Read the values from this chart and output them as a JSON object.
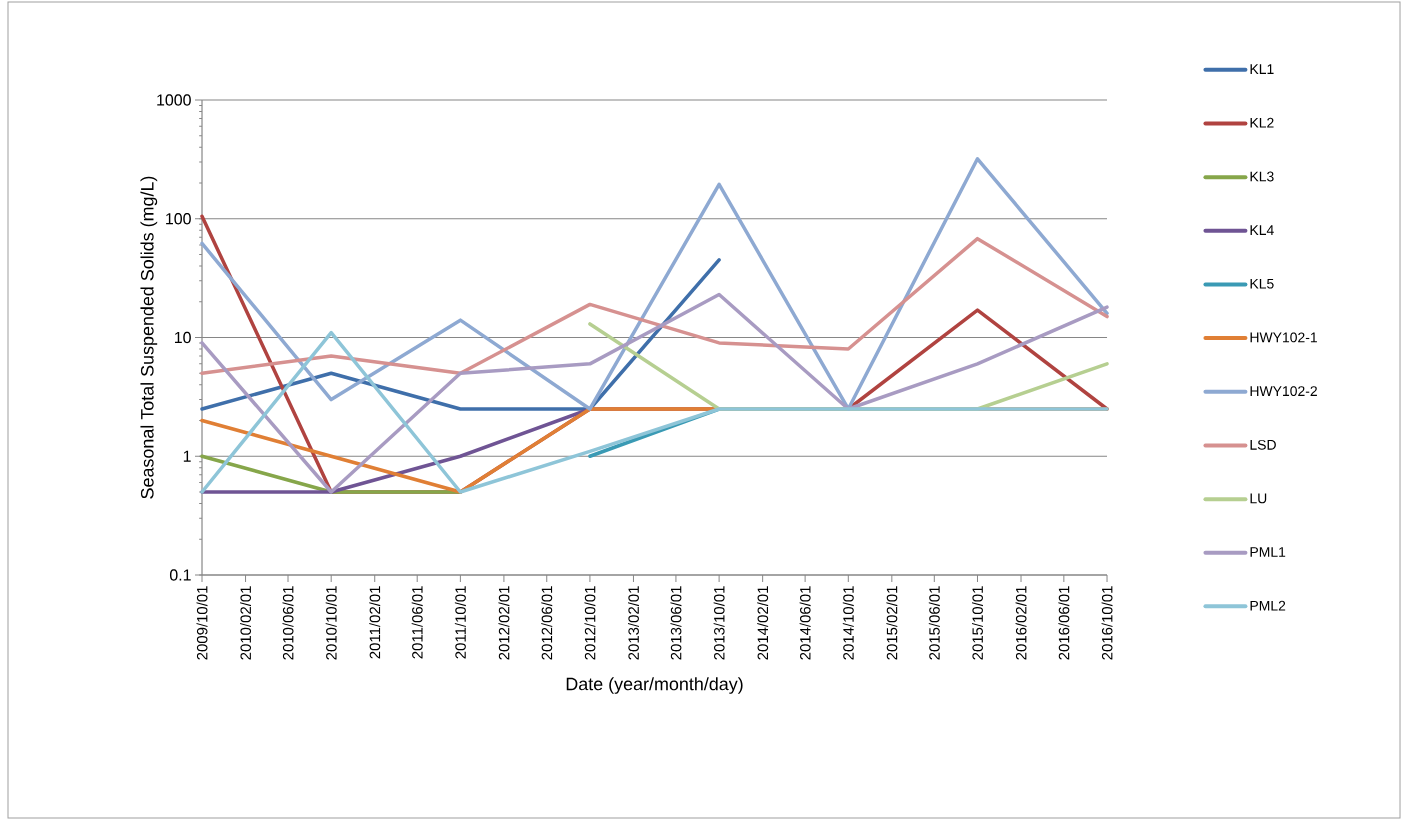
{
  "chart_data": {
    "type": "line",
    "xlabel": "Date (year/month/day)",
    "ylabel": "Seasonal Total Suspended Solids (mg/L)",
    "x": [
      "2009-10-01",
      "2010-10-01",
      "2011-10-01",
      "2012-10-01",
      "2013-10-01",
      "2014-10-01",
      "2015-10-01",
      "2016-10-01"
    ],
    "series": [
      {
        "name": "KL1",
        "color": "#3f6faa",
        "values": [
          2.5,
          5,
          2.5,
          2.5,
          45,
          null,
          null,
          null
        ]
      },
      {
        "name": "KL2",
        "color": "#b04340",
        "values": [
          105,
          0.5,
          0.5,
          2.5,
          2.5,
          2.5,
          17,
          2.5
        ]
      },
      {
        "name": "KL3",
        "color": "#86a64a",
        "values": [
          1,
          0.5,
          0.5,
          null,
          null,
          null,
          null,
          null
        ]
      },
      {
        "name": "KL4",
        "color": "#6f5494",
        "values": [
          0.5,
          0.5,
          1,
          2.5,
          null,
          null,
          null,
          null
        ]
      },
      {
        "name": "KL5",
        "color": "#3a9ab4",
        "values": [
          null,
          null,
          null,
          1,
          2.5,
          null,
          null,
          null
        ]
      },
      {
        "name": "HWY102-1",
        "color": "#e07f35",
        "values": [
          2,
          1,
          0.5,
          2.5,
          2.5,
          2.5,
          2.5,
          2.5
        ]
      },
      {
        "name": "HWY102-2",
        "color": "#8ea9d2",
        "values": [
          62,
          3,
          14,
          2.5,
          195,
          2.5,
          320,
          16
        ]
      },
      {
        "name": "LSD",
        "color": "#d69190",
        "values": [
          5,
          7,
          5,
          19,
          9,
          8,
          68,
          15
        ]
      },
      {
        "name": "LU",
        "color": "#b6cf91",
        "values": [
          null,
          null,
          null,
          13,
          2.5,
          2.5,
          2.5,
          6
        ]
      },
      {
        "name": "PML1",
        "color": "#a89bc2",
        "values": [
          9,
          0.5,
          5,
          6,
          23,
          2.5,
          6,
          18
        ]
      },
      {
        "name": "PML2",
        "color": "#8ec5d8",
        "values": [
          0.5,
          11,
          0.5,
          1.1,
          2.5,
          2.5,
          2.5,
          2.5
        ]
      }
    ],
    "log": "y",
    "ylim": [
      0.1,
      1000
    ],
    "yticks": [
      0.1,
      1,
      10,
      100,
      1000
    ],
    "xlim": [
      "2009-10-01",
      "2016-10-01"
    ],
    "xticks": [
      {
        "value": "2009-10-01",
        "label": "2009/10/01"
      },
      {
        "value": "2010-02-01",
        "label": "2010/02/01"
      },
      {
        "value": "2010-06-01",
        "label": "2010/06/01"
      },
      {
        "value": "2010-10-01",
        "label": "2010/10/01"
      },
      {
        "value": "2011-02-01",
        "label": "2011/02/01"
      },
      {
        "value": "2011-06-01",
        "label": "2011/06/01"
      },
      {
        "value": "2011-10-01",
        "label": "2011/10/01"
      },
      {
        "value": "2012-02-01",
        "label": "2012/02/01"
      },
      {
        "value": "2012-06-01",
        "label": "2012/06/01"
      },
      {
        "value": "2012-10-01",
        "label": "2012/10/01"
      },
      {
        "value": "2013-02-01",
        "label": "2013/02/01"
      },
      {
        "value": "2013-06-01",
        "label": "2013/06/01"
      },
      {
        "value": "2013-10-01",
        "label": "2013/10/01"
      },
      {
        "value": "2014-02-01",
        "label": "2014/02/01"
      },
      {
        "value": "2014-06-01",
        "label": "2014/06/01"
      },
      {
        "value": "2014-10-01",
        "label": "2014/10/01"
      },
      {
        "value": "2015-02-01",
        "label": "2015/02/01"
      },
      {
        "value": "2015-06-01",
        "label": "2015/06/01"
      },
      {
        "value": "2015-10-01",
        "label": "2015/10/01"
      },
      {
        "value": "2016-02-01",
        "label": "2016/02/01"
      },
      {
        "value": "2016-06-01",
        "label": "2016/06/01"
      },
      {
        "value": "2016-10-01",
        "label": "2016/10/01"
      }
    ],
    "grid": "y",
    "legend": "right",
    "marker": "none",
    "line_style": "solid"
  }
}
